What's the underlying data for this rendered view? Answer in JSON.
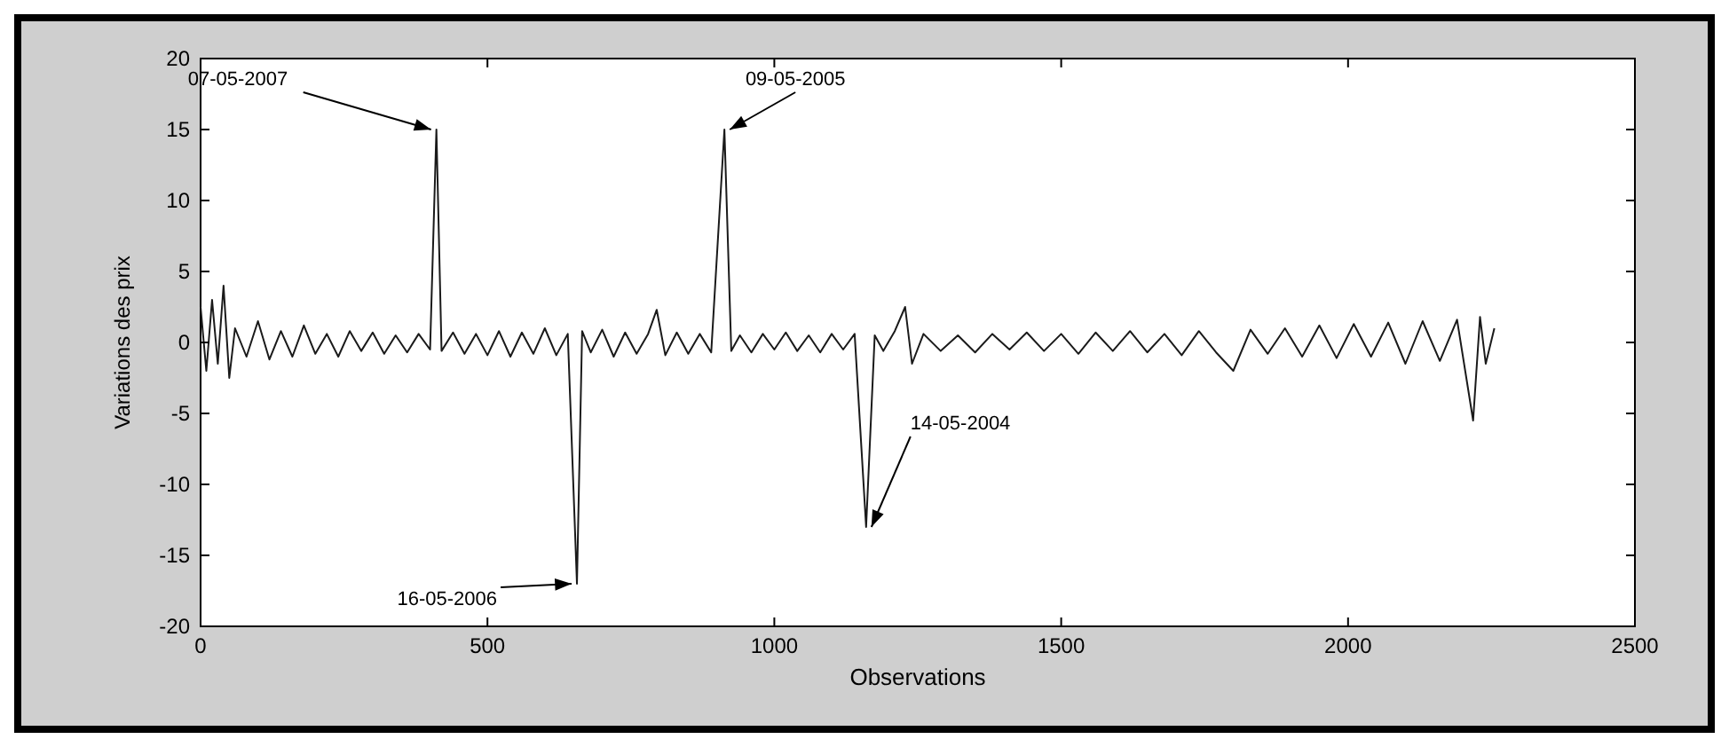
{
  "chart_data": {
    "type": "line",
    "xlabel": "Observations",
    "ylabel": "Variations des prix",
    "x": [
      0,
      10,
      20,
      30,
      40,
      50,
      60,
      80,
      100,
      120,
      140,
      160,
      180,
      200,
      220,
      240,
      260,
      280,
      300,
      320,
      340,
      360,
      380,
      400,
      411,
      420,
      440,
      460,
      480,
      500,
      520,
      540,
      560,
      580,
      600,
      620,
      640,
      656,
      665,
      680,
      700,
      720,
      740,
      760,
      780,
      795,
      810,
      830,
      850,
      870,
      890,
      913,
      925,
      940,
      960,
      980,
      1000,
      1020,
      1040,
      1060,
      1080,
      1100,
      1120,
      1140,
      1160,
      1175,
      1190,
      1210,
      1228,
      1240,
      1260,
      1290,
      1320,
      1350,
      1380,
      1410,
      1440,
      1470,
      1500,
      1530,
      1560,
      1590,
      1620,
      1650,
      1680,
      1710,
      1740,
      1770,
      1800,
      1830,
      1860,
      1890,
      1920,
      1950,
      1980,
      2010,
      2040,
      2070,
      2100,
      2130,
      2160,
      2190,
      2218,
      2230,
      2240,
      2255
    ],
    "series": [
      {
        "color": "#1a1a1a",
        "values": [
          2.5,
          -2,
          3,
          -1.5,
          4,
          -2.5,
          1,
          -1,
          1.5,
          -1.2,
          0.8,
          -1,
          1.2,
          -0.8,
          0.6,
          -1,
          0.8,
          -0.6,
          0.7,
          -0.8,
          0.5,
          -0.7,
          0.6,
          -0.5,
          15,
          -0.6,
          0.7,
          -0.8,
          0.6,
          -0.9,
          0.8,
          -1,
          0.7,
          -0.8,
          1,
          -0.9,
          0.6,
          -17,
          0.8,
          -0.7,
          0.9,
          -1,
          0.7,
          -0.8,
          0.6,
          2.3,
          -0.9,
          0.7,
          -0.8,
          0.6,
          -0.7,
          15,
          -0.6,
          0.5,
          -0.7,
          0.6,
          -0.5,
          0.7,
          -0.6,
          0.5,
          -0.7,
          0.6,
          -0.5,
          0.6,
          -13,
          0.5,
          -0.6,
          0.8,
          2.5,
          -1.5,
          0.6,
          -0.6,
          0.5,
          -0.7,
          0.6,
          -0.5,
          0.7,
          -0.6,
          0.6,
          -0.8,
          0.7,
          -0.6,
          0.8,
          -0.7,
          0.6,
          -0.9,
          0.8,
          -0.7,
          -2,
          0.9,
          -0.8,
          1,
          -1,
          1.2,
          -1.1,
          1.3,
          -1,
          1.4,
          -1.5,
          1.5,
          -1.3,
          1.6,
          -5.5,
          1.8,
          -1.5,
          1
        ]
      }
    ],
    "xlim": [
      0,
      2500
    ],
    "xticks": [
      0,
      500,
      1000,
      1500,
      2000,
      2500
    ],
    "ylim": [
      -20,
      20
    ],
    "yticks": [
      -20,
      -15,
      -10,
      -5,
      0,
      5,
      10,
      15,
      20
    ],
    "grid": false,
    "marker": "none",
    "line_style": "solid",
    "annotations": [
      {
        "text": "07-05-2007",
        "x": 411,
        "y": 15
      },
      {
        "text": "09-05-2005",
        "x": 913,
        "y": 15
      },
      {
        "text": "16-05-2006",
        "x": 656,
        "y": -17
      },
      {
        "text": "14-05-2004",
        "x": 1160,
        "y": -13
      }
    ]
  }
}
